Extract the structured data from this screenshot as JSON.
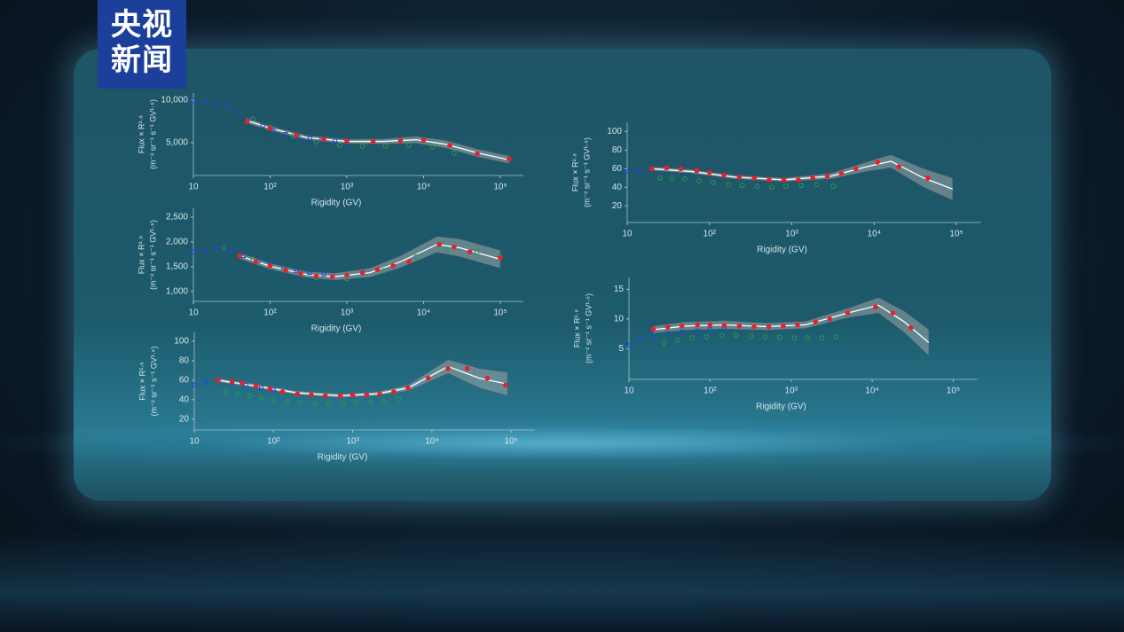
{
  "logo": [
    "央视",
    "新闻"
  ],
  "chart_data": [
    {
      "type": "scatter",
      "log_x": true,
      "x_label": "Rigidity (GV)",
      "y_label": [
        "Flux × R²·⁶",
        "(m⁻² sr⁻¹ s⁻¹ GV¹·⁶)"
      ],
      "xlim": [
        10,
        200000
      ],
      "ylim": [
        1150,
        10830
      ],
      "xticks": [
        10,
        {
          "value": 100,
          "label": "10²"
        },
        {
          "value": 1000,
          "label": "10³"
        },
        {
          "value": 10000,
          "label": "10⁴"
        },
        {
          "value": 100000,
          "label": "10⁵"
        }
      ],
      "yticks": [
        {
          "value": 5000,
          "label": "5,000"
        },
        {
          "value": 10000,
          "label": "10,000"
        }
      ],
      "series": [
        {
          "kind": "band-line",
          "color": "#ffffff",
          "band_color": "#9aa8a8",
          "x": [
            50,
            100,
            300,
            1000,
            3000,
            8000,
            20000,
            50000,
            130000
          ],
          "values": [
            7600,
            6700,
            5600,
            5150,
            5150,
            5350,
            4800,
            3800,
            3000
          ],
          "lower": [
            7300,
            6450,
            5350,
            4900,
            4850,
            4950,
            4350,
            3350,
            2550
          ],
          "upper": [
            7900,
            6950,
            5850,
            5400,
            5450,
            5750,
            5250,
            4250,
            3450
          ]
        },
        {
          "kind": "open-square",
          "color": "#2846d0",
          "x": [
            10,
            14,
            20,
            28,
            40,
            56,
            80,
            110,
            160,
            230,
            330,
            470,
            700,
            1000
          ],
          "values": [
            9900,
            9800,
            9600,
            9200,
            8600,
            7800,
            7000,
            6400,
            6000,
            5700,
            5500,
            5300,
            5200,
            5100
          ]
        },
        {
          "kind": "open-circle",
          "color": "#2a9a50",
          "x": [
            60,
            100,
            200,
            400,
            800,
            1600,
            3200,
            6400,
            13000,
            25000
          ],
          "values": [
            7800,
            6800,
            5800,
            5100,
            4700,
            4600,
            4600,
            4700,
            4500,
            3800
          ]
        },
        {
          "kind": "dot",
          "color": "#e8202a",
          "x": [
            50,
            100,
            220,
            500,
            1000,
            2200,
            5000,
            10000,
            22000,
            50000,
            130000
          ],
          "values": [
            7500,
            6700,
            5900,
            5400,
            5200,
            5150,
            5250,
            5300,
            4700,
            3700,
            3100
          ]
        }
      ]
    },
    {
      "type": "scatter",
      "log_x": true,
      "x_label": "Rigidity (GV)",
      "y_label": [
        "Flux × R²·⁶",
        "(m⁻² sr⁻¹ s⁻¹ GV¹·⁶)"
      ],
      "xlim": [
        10,
        200000
      ],
      "ylim": [
        800,
        2680
      ],
      "xticks": [
        10,
        {
          "value": 100,
          "label": "10²"
        },
        {
          "value": 1000,
          "label": "10³"
        },
        {
          "value": 10000,
          "label": "10⁴"
        },
        {
          "value": 100000,
          "label": "10⁵"
        }
      ],
      "yticks": [
        {
          "value": 1000,
          "label": "1,000"
        },
        {
          "value": 1500,
          "label": "1,500"
        },
        {
          "value": 2000,
          "label": "2,000"
        },
        {
          "value": 2500,
          "label": "2,500"
        }
      ],
      "series": [
        {
          "kind": "band-line",
          "color": "#ffffff",
          "band_color": "#9aa8a8",
          "x": [
            40,
            100,
            300,
            700,
            2000,
            5000,
            15000,
            30000,
            100000
          ],
          "values": [
            1720,
            1510,
            1340,
            1300,
            1380,
            1600,
            1950,
            1880,
            1650
          ],
          "lower": [
            1660,
            1450,
            1280,
            1230,
            1290,
            1480,
            1790,
            1700,
            1470
          ],
          "upper": [
            1780,
            1570,
            1400,
            1370,
            1470,
            1720,
            2110,
            2060,
            1830
          ]
        },
        {
          "kind": "open-square",
          "color": "#2846d0",
          "x": [
            10,
            14,
            20,
            30,
            45,
            70,
            100,
            150,
            220,
            330,
            500
          ],
          "values": [
            1800,
            1820,
            1850,
            1820,
            1720,
            1620,
            1550,
            1480,
            1420,
            1380,
            1350
          ]
        },
        {
          "kind": "open-circle",
          "color": "#2a9a50",
          "x": [
            25,
            60,
            150,
            400,
            1000,
            3000,
            8000,
            20000,
            50000,
            100000
          ],
          "values": [
            1880,
            1650,
            1440,
            1280,
            1260,
            1420,
            1700,
            1850,
            1800,
            1700
          ]
        },
        {
          "kind": "dot",
          "color": "#e8202a",
          "x": [
            40,
            65,
            100,
            160,
            250,
            400,
            650,
            1000,
            1600,
            2500,
            4000,
            6500,
            16000,
            25000,
            40000,
            100000
          ],
          "values": [
            1720,
            1600,
            1520,
            1430,
            1360,
            1310,
            1300,
            1330,
            1380,
            1440,
            1520,
            1600,
            1950,
            1900,
            1800,
            1680
          ]
        }
      ]
    },
    {
      "type": "scatter",
      "log_x": true,
      "x_label": "Rigidity (GV)",
      "y_label": [
        "Flux × R²·⁶",
        "(m⁻² sr⁻¹ s⁻¹ GV¹·⁶)"
      ],
      "xlim": [
        10,
        200000
      ],
      "ylim": [
        9,
        109
      ],
      "xticks": [
        10,
        {
          "value": 100,
          "label": "10²"
        },
        {
          "value": 1000,
          "label": "10³"
        },
        {
          "value": 10000,
          "label": "10⁴"
        },
        {
          "value": 100000,
          "label": "10⁵"
        }
      ],
      "yticks": [
        20,
        40,
        60,
        80,
        100
      ],
      "series": [
        {
          "kind": "band-line",
          "color": "#ffffff",
          "band_color": "#9aa8a8",
          "x": [
            20,
            50,
            200,
            700,
            2000,
            5000,
            16000,
            40000,
            90000
          ],
          "values": [
            60,
            55,
            47,
            44,
            46,
            52,
            74,
            62,
            56
          ],
          "lower": [
            58,
            53,
            45,
            42,
            44,
            49,
            67,
            52,
            44
          ],
          "upper": [
            62,
            57,
            49,
            46,
            48,
            55,
            81,
            72,
            68
          ]
        },
        {
          "kind": "open-square",
          "color": "#2846d0",
          "x": [
            10,
            14,
            20,
            30,
            45,
            70,
            100
          ],
          "values": [
            55,
            58,
            60,
            58,
            55,
            52,
            50
          ]
        },
        {
          "kind": "open-circle",
          "color": "#2a9a50",
          "x": [
            25,
            35,
            50,
            70,
            100,
            150,
            220,
            330,
            500,
            750,
            1100,
            1700,
            2500,
            3800
          ],
          "values": [
            48,
            46,
            44,
            42,
            40,
            38,
            37,
            36,
            36,
            36,
            37,
            37,
            38,
            41
          ]
        },
        {
          "kind": "dot",
          "color": "#e8202a",
          "x": [
            20,
            30,
            40,
            60,
            90,
            130,
            200,
            300,
            450,
            700,
            1000,
            1500,
            2200,
            3300,
            5000,
            9000,
            16000,
            28000,
            50000,
            85000
          ],
          "values": [
            60,
            59,
            57,
            54,
            51,
            48,
            46,
            45,
            44,
            44,
            45,
            45,
            46,
            48,
            52,
            62,
            72,
            72,
            62,
            55
          ]
        }
      ]
    },
    {
      "type": "scatter",
      "log_x": true,
      "x_label": "Rigidity (GV)",
      "y_label": [
        "Flux × R²·⁶",
        "(m⁻² sr⁻¹ s⁻¹ GV¹·⁶)"
      ],
      "xlim": [
        10,
        200000
      ],
      "ylim": [
        2,
        110
      ],
      "xticks": [
        10,
        {
          "value": 100,
          "label": "10²"
        },
        {
          "value": 1000,
          "label": "10³"
        },
        {
          "value": 10000,
          "label": "10⁴"
        },
        {
          "value": 100000,
          "label": "10⁵"
        }
      ],
      "yticks": [
        20,
        40,
        60,
        80,
        100
      ],
      "series": [
        {
          "kind": "band-line",
          "color": "#ffffff",
          "band_color": "#9aa8a8",
          "x": [
            20,
            60,
            200,
            800,
            3000,
            8000,
            16000,
            40000,
            90000
          ],
          "values": [
            60,
            57,
            51,
            48,
            52,
            62,
            68,
            50,
            38
          ],
          "lower": [
            58,
            55,
            49,
            46,
            49,
            57,
            61,
            40,
            26
          ],
          "upper": [
            62,
            59,
            53,
            50,
            55,
            67,
            75,
            60,
            50
          ]
        },
        {
          "kind": "open-square",
          "color": "#2846d0",
          "x": [
            10,
            14,
            20,
            30,
            45,
            70
          ],
          "values": [
            57,
            58,
            60,
            61,
            60,
            58
          ]
        },
        {
          "kind": "open-circle",
          "color": "#2a9a50",
          "x": [
            25,
            35,
            50,
            75,
            110,
            170,
            250,
            380,
            570,
            850,
            1300,
            2000,
            3200
          ],
          "values": [
            50,
            50,
            49,
            47,
            45,
            43,
            42,
            41,
            40,
            41,
            42,
            43,
            41
          ]
        },
        {
          "kind": "dot",
          "color": "#e8202a",
          "x": [
            20,
            30,
            45,
            70,
            100,
            150,
            230,
            350,
            530,
            800,
            1200,
            1800,
            2700,
            4000,
            6000,
            11000,
            20000,
            45000
          ],
          "values": [
            60,
            61,
            60,
            58,
            56,
            53,
            51,
            50,
            48,
            48,
            48,
            50,
            52,
            55,
            60,
            67,
            62,
            50
          ]
        }
      ]
    },
    {
      "type": "scatter",
      "log_x": true,
      "x_label": "Rigidity (GV)",
      "y_label": [
        "Flux × R²·⁶",
        "(m⁻² sr⁻¹ s⁻¹ GV¹·⁶)"
      ],
      "xlim": [
        10,
        200000
      ],
      "ylim": [
        -0.2,
        17
      ],
      "xticks": [
        10,
        {
          "value": 100,
          "label": "10²"
        },
        {
          "value": 1000,
          "label": "10³"
        },
        {
          "value": 10000,
          "label": "10⁴"
        },
        {
          "value": 100000,
          "label": "10⁵"
        }
      ],
      "yticks": [
        5,
        10,
        15
      ],
      "series": [
        {
          "kind": "band-line",
          "color": "#ffffff",
          "band_color": "#9aa8a8",
          "x": [
            20,
            50,
            150,
            500,
            1500,
            5000,
            12000,
            25000,
            50000
          ],
          "values": [
            8.2,
            8.8,
            9,
            8.7,
            9,
            11,
            12.3,
            9.5,
            6
          ],
          "lower": [
            7.6,
            8.1,
            8.3,
            8.1,
            8.4,
            10.2,
            11,
            7.7,
            3.8
          ],
          "upper": [
            8.8,
            9.5,
            9.7,
            9.3,
            9.6,
            11.8,
            13.6,
            11.3,
            8.2
          ]
        },
        {
          "kind": "open-square",
          "color": "#2846d0",
          "x": [
            10,
            14,
            20,
            30,
            45,
            70,
            100,
            150
          ],
          "values": [
            5.5,
            6.5,
            7.2,
            7.6,
            7.8,
            8,
            8.2,
            8.3
          ]
        },
        {
          "kind": "open-circle",
          "color": "#2a9a50",
          "x": [
            27,
            40,
            60,
            90,
            140,
            210,
            320,
            480,
            720,
            1100,
            1600,
            2400,
            3600
          ],
          "values": [
            6,
            6.4,
            6.8,
            7,
            7.2,
            7.2,
            7.1,
            7,
            6.9,
            6.8,
            6.8,
            6.8,
            7
          ]
        },
        {
          "kind": "dot",
          "color": "#e8202a",
          "x": [
            20,
            30,
            45,
            70,
            100,
            150,
            230,
            350,
            530,
            800,
            1200,
            2000,
            3000,
            5000,
            11000,
            18000,
            30000
          ],
          "values": [
            8.3,
            8.6,
            8.8,
            9,
            9,
            8.9,
            8.8,
            8.7,
            8.7,
            8.8,
            9,
            9.5,
            10,
            11,
            12,
            11,
            8.5
          ]
        }
      ]
    }
  ]
}
